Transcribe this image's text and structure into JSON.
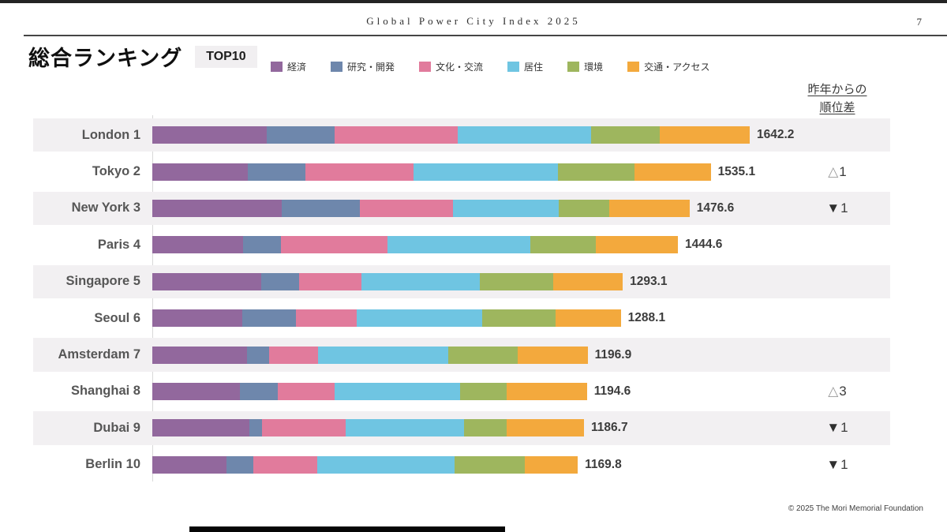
{
  "page": {
    "header_title": "Global Power City Index 2025",
    "page_number": "7",
    "title": "総合ランキング",
    "badge": "TOP10",
    "rank_change_header_line1": "昨年からの",
    "rank_change_header_line2": "順位差",
    "footer": "© 2025 The Mori Memorial Foundation"
  },
  "chart_data": {
    "type": "bar",
    "orientation": "horizontal",
    "stacked": true,
    "title": "総合ランキング TOP10",
    "legend_position": "top",
    "grid": false,
    "xlim": [
      0,
      1700
    ],
    "categories": [
      "London",
      "Tokyo",
      "New York",
      "Paris",
      "Singapore",
      "Seoul",
      "Amsterdam",
      "Shanghai",
      "Dubai",
      "Berlin"
    ],
    "ranks": [
      1,
      2,
      3,
      4,
      5,
      6,
      7,
      8,
      9,
      10
    ],
    "totals": [
      1642.2,
      1535.1,
      1476.6,
      1444.6,
      1293.1,
      1288.1,
      1196.9,
      1194.6,
      1186.7,
      1169.8
    ],
    "rank_changes": [
      "",
      "△1",
      "▼1",
      "",
      "",
      "",
      "",
      "△3",
      "▼1",
      "▼1"
    ],
    "series": [
      {
        "name": "経済",
        "color": "#92689d",
        "values": [
          314.6,
          262.6,
          355.9,
          249.6,
          299.5,
          246.5,
          259.7,
          240.9,
          266.5,
          204.8
        ]
      },
      {
        "name": "研究・開発",
        "color": "#6e87ac",
        "values": [
          186.6,
          158.4,
          214.8,
          104.2,
          103.3,
          148.4,
          61.4,
          104.2,
          35.2,
          72.5
        ]
      },
      {
        "name": "文化・交流",
        "color": "#e17b9c",
        "values": [
          338.4,
          297.3,
          256.1,
          293.0,
          171.4,
          167.1,
          134.3,
          156.2,
          230.9,
          176.0
        ]
      },
      {
        "name": "居住",
        "color": "#6fc5e2",
        "values": [
          365.6,
          397.1,
          290.8,
          392.8,
          326.4,
          344.2,
          357.2,
          344.4,
          324.2,
          378.0
        ]
      },
      {
        "name": "環境",
        "color": "#9eb65e",
        "values": [
          189.8,
          210.5,
          138.9,
          180.1,
          201.4,
          203.3,
          192.5,
          128.7,
          117.6,
          193.6
        ]
      },
      {
        "name": "交通・アクセス",
        "color": "#f3a93d",
        "values": [
          247.2,
          209.2,
          220.1,
          224.9,
          191.1,
          178.6,
          191.8,
          220.2,
          212.3,
          144.9
        ]
      }
    ]
  }
}
